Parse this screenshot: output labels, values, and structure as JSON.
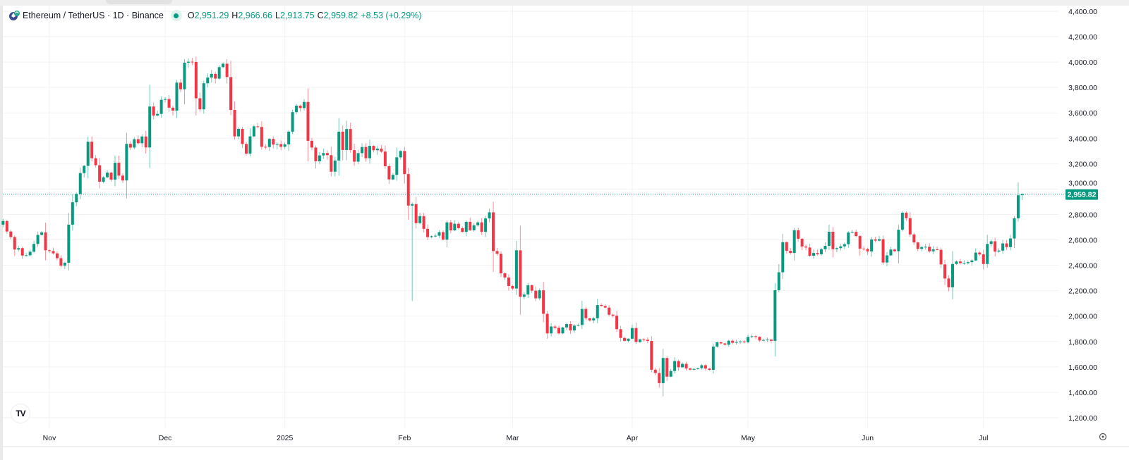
{
  "header": {
    "symbol": "Ethereum / TetherUS · 1D · Binance",
    "symbol_icon": "ethereum-coin-icon",
    "status": "market-open-dot",
    "open_label": "O",
    "open": "2,951.29",
    "high_label": "H",
    "high": "2,966.66",
    "low_label": "L",
    "low": "2,913.75",
    "close_label": "C",
    "close": "2,959.82",
    "change": "+8.53 (+0.29%)"
  },
  "last_price_label": "2,959.82",
  "logo": "TV",
  "settings_icon": "gear-icon",
  "colors": {
    "up": "#089981",
    "down": "#F23645",
    "grid": "#f2f2f2",
    "text": "#131722"
  },
  "chart_data": {
    "type": "candlestick",
    "title": "",
    "ylim": [
      1200,
      4400
    ],
    "y_ticks": [
      "4,400.00",
      "4,200.00",
      "4,000.00",
      "3,800.00",
      "3,600.00",
      "3,400.00",
      "3,200.00",
      "3,000.00",
      "2,800.00",
      "2,600.00",
      "2,400.00",
      "2,200.00",
      "2,000.00",
      "1,800.00",
      "1,600.00",
      "1,400.00",
      "1,200.00"
    ],
    "y_tick_values": [
      4400,
      4200,
      4000,
      3800,
      3600,
      3400,
      3200,
      3000,
      2800,
      2600,
      2400,
      2200,
      2000,
      1800,
      1600,
      1400,
      1200
    ],
    "x_ticks": [
      {
        "label": "Nov",
        "date": "2024-11-01"
      },
      {
        "label": "Dec",
        "date": "2024-12-01"
      },
      {
        "label": "2025",
        "date": "2025-01-01"
      },
      {
        "label": "Feb",
        "date": "2025-02-01"
      },
      {
        "label": "Mar",
        "date": "2025-03-01"
      },
      {
        "label": "Apr",
        "date": "2025-04-01"
      },
      {
        "label": "May",
        "date": "2025-05-01"
      },
      {
        "label": "Jun",
        "date": "2025-06-01"
      },
      {
        "label": "Jul",
        "date": "2025-07-01"
      }
    ],
    "grid": true,
    "last_price": 2959.82,
    "last_candle": {
      "open": 2951.29,
      "high": 2966.66,
      "low": 2913.75,
      "close": 2959.82
    },
    "notable_wicks": [
      {
        "date": "2025-02-03",
        "low": 2120
      }
    ],
    "daily_close": [
      {
        "month": "2024-10",
        "first_day": 20,
        "close": [
          2748,
          2666,
          2622,
          2524,
          2535,
          2477,
          2479,
          2507,
          2568,
          2639,
          2659,
          2518
        ]
      },
      {
        "month": "2024-11",
        "first_day": 1,
        "close": [
          2512,
          2494,
          2456,
          2397,
          2420,
          2720,
          2896,
          2962,
          3126,
          3183,
          3373,
          3243,
          3188,
          3058,
          3093,
          3130,
          3075,
          3207,
          3106,
          3068,
          3356,
          3327,
          3393,
          3361,
          3414,
          3328,
          3650,
          3579,
          3592,
          3703
        ]
      },
      {
        "month": "2024-12",
        "first_day": 1,
        "close": [
          3709,
          3641,
          3618,
          3838,
          3786,
          3995,
          4003,
          4001,
          3715,
          3628,
          3833,
          3878,
          3907,
          3870,
          3960,
          3987,
          3882,
          3623,
          3415,
          3474,
          3355,
          3279,
          3415,
          3494,
          3489,
          3333,
          3331,
          3395,
          3350,
          3354,
          3333
        ]
      },
      {
        "month": "2025-01",
        "first_day": 1,
        "close": [
          3352,
          3452,
          3606,
          3657,
          3638,
          3686,
          3380,
          3327,
          3219,
          3265,
          3284,
          3267,
          3137,
          3225,
          3452,
          3308,
          3473,
          3307,
          3216,
          3283,
          3331,
          3243,
          3340,
          3306,
          3319,
          3295,
          3180,
          3076,
          3112,
          3250,
          3300
        ]
      },
      {
        "month": "2025-02",
        "first_day": 1,
        "close": [
          3118,
          2870,
          2882,
          2732,
          2787,
          2687,
          2622,
          2629,
          2633,
          2661,
          2602,
          2738,
          2675,
          2727,
          2692,
          2663,
          2742,
          2676,
          2715,
          2738,
          2663,
          2769,
          2817,
          2512,
          2491,
          2337,
          2304,
          2237
        ]
      },
      {
        "month": "2025-03",
        "first_day": 1,
        "close": [
          2217,
          2518,
          2152,
          2170,
          2243,
          2200,
          2140,
          2203,
          2018,
          1864,
          1918,
          1908,
          1864,
          1911,
          1937,
          1887,
          1925,
          1930,
          2056,
          1983,
          1966,
          1983,
          2087,
          2080,
          2067,
          2011,
          2003,
          1897,
          1828,
          1805,
          1822
        ]
      },
      {
        "month": "2025-04",
        "first_day": 1,
        "close": [
          1906,
          1796,
          1817,
          1814,
          1804,
          1578,
          1552,
          1472,
          1670,
          1523,
          1568,
          1646,
          1597,
          1624,
          1588,
          1578,
          1584,
          1590,
          1613,
          1587,
          1577,
          1760,
          1794,
          1785,
          1775,
          1806,
          1790,
          1796,
          1800,
          1794
        ]
      },
      {
        "month": "2025-05",
        "first_day": 1,
        "close": [
          1836,
          1841,
          1837,
          1808,
          1812,
          1815,
          1805,
          2204,
          2345,
          2582,
          2514,
          2497,
          2676,
          2609,
          2548,
          2540,
          2475,
          2497,
          2487,
          2526,
          2553,
          2664,
          2527,
          2535,
          2549,
          2566,
          2658,
          2663,
          2630,
          2531,
          2528
        ]
      },
      {
        "month": "2025-06",
        "first_day": 1,
        "close": [
          2509,
          2604,
          2594,
          2606,
          2422,
          2478,
          2524,
          2511,
          2680,
          2814,
          2771,
          2643,
          2580,
          2529,
          2544,
          2546,
          2510,
          2525,
          2522,
          2407,
          2296,
          2227,
          2410,
          2430,
          2417,
          2417,
          2425,
          2438,
          2500,
          2486
        ]
      },
      {
        "month": "2025-07",
        "first_day": 1,
        "close": [
          2410,
          2568,
          2589,
          2508,
          2516,
          2572,
          2543,
          2611,
          2770,
          2951,
          2959.82
        ]
      }
    ]
  }
}
